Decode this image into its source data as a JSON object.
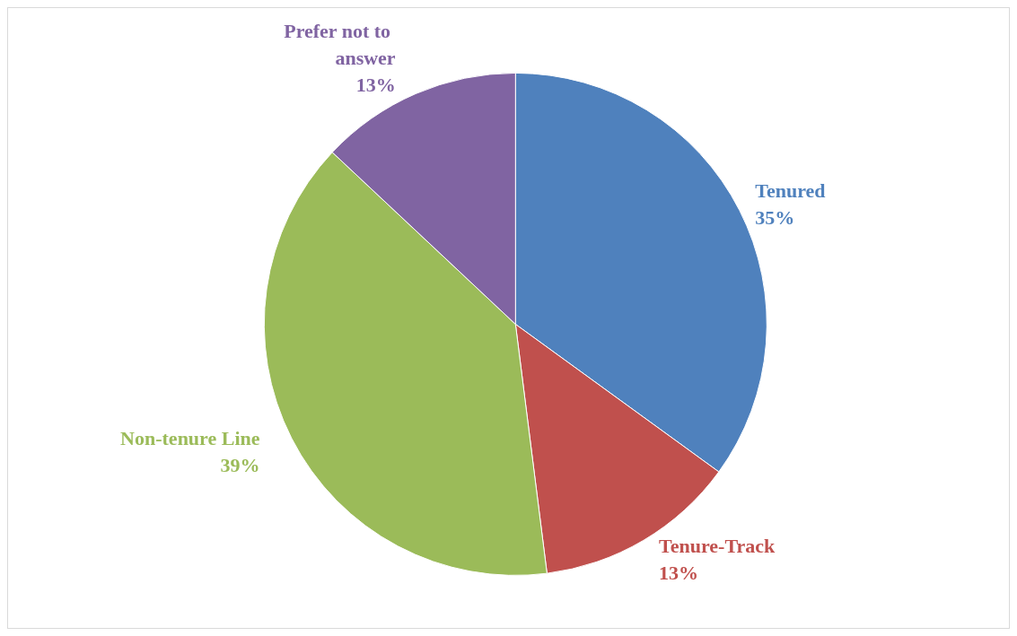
{
  "chart_data": {
    "type": "pie",
    "categories": [
      "Tenured",
      "Tenure-Track",
      "Non-tenure Line",
      "Prefer not to answer"
    ],
    "values": [
      35,
      13,
      39,
      13
    ],
    "value_labels": [
      "35%",
      "13%",
      "39%",
      "13%"
    ],
    "colors": [
      "#4f81bd",
      "#c0504d",
      "#9bbb59",
      "#8064a2"
    ],
    "legend": false
  }
}
